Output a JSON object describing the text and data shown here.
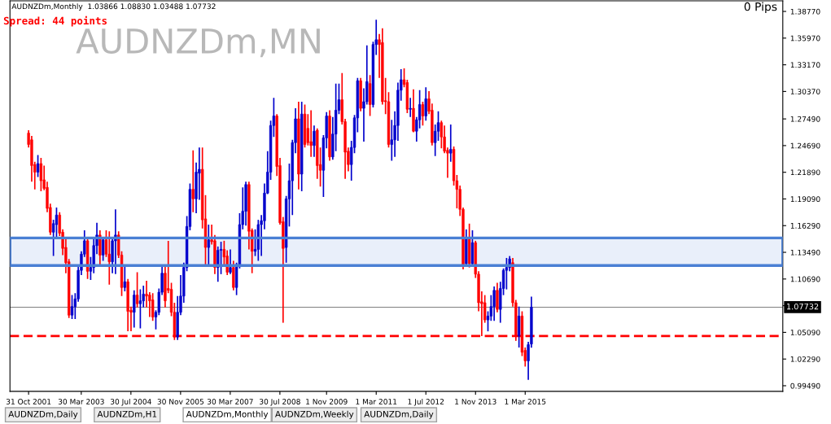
{
  "chart_data": {
    "type": "candlestick",
    "title": "AUDNZDm,MN",
    "annotations": [
      "AUDNZDm,Monthly  1.03866 1.08830 1.03488 1.07732",
      "Spread: 44 points",
      "0 Pips",
      "AUDNZDm,Daily",
      "AUDNZDm,H1",
      "AUDNZDm,Monthly",
      "AUDNZDm,Weekly",
      "AUDNZDm,Daily"
    ],
    "x": [
      "2001-11",
      "2001-12",
      "2002-01",
      "2002-02",
      "2002-03",
      "2002-04",
      "2002-05",
      "2002-06",
      "2002-07",
      "2002-08",
      "2002-09",
      "2002-10",
      "2002-11",
      "2002-12",
      "2003-01",
      "2003-02",
      "2003-03",
      "2003-04",
      "2003-05",
      "2003-06",
      "2003-07",
      "2003-08",
      "2003-09",
      "2003-10",
      "2003-11",
      "2003-12",
      "2004-01",
      "2004-02",
      "2004-03",
      "2004-04",
      "2004-05",
      "2004-06",
      "2004-07",
      "2004-08",
      "2004-09",
      "2004-10",
      "2004-11",
      "2004-12",
      "2005-01",
      "2005-02",
      "2005-03",
      "2005-04",
      "2005-05",
      "2005-06",
      "2005-07",
      "2005-08",
      "2005-09",
      "2005-10",
      "2005-11",
      "2005-12",
      "2006-01",
      "2006-02",
      "2006-03",
      "2006-04",
      "2006-05",
      "2006-06",
      "2006-07",
      "2006-08",
      "2006-09",
      "2006-10",
      "2006-11",
      "2006-12",
      "2007-01",
      "2007-02",
      "2007-03",
      "2007-04",
      "2007-05",
      "2007-06",
      "2007-07",
      "2007-08",
      "2007-09",
      "2007-10",
      "2007-11",
      "2007-12",
      "2008-01",
      "2008-02",
      "2008-03",
      "2008-04",
      "2008-05",
      "2008-06",
      "2008-07",
      "2008-08",
      "2008-09",
      "2008-10",
      "2008-11",
      "2008-12",
      "2009-01",
      "2009-02",
      "2009-03",
      "2009-04",
      "2009-05",
      "2009-06",
      "2009-07",
      "2009-08",
      "2009-09",
      "2009-10",
      "2009-11",
      "2009-12",
      "2010-01",
      "2010-02",
      "2010-03",
      "2010-04",
      "2010-05",
      "2010-06",
      "2010-07",
      "2010-08",
      "2010-09",
      "2010-10",
      "2010-11",
      "2010-12",
      "2011-01",
      "2011-02",
      "2011-03",
      "2011-04",
      "2011-05",
      "2011-06",
      "2011-07",
      "2011-08",
      "2011-09",
      "2011-10",
      "2011-11",
      "2011-12",
      "2012-01",
      "2012-02",
      "2012-03",
      "2012-04",
      "2012-05",
      "2012-06",
      "2012-07",
      "2012-08",
      "2012-09",
      "2012-10",
      "2012-11",
      "2012-12",
      "2013-01",
      "2013-02",
      "2013-03",
      "2013-04",
      "2013-05",
      "2013-06",
      "2013-07",
      "2013-08",
      "2013-09",
      "2013-10",
      "2013-11",
      "2013-12",
      "2014-01",
      "2014-02",
      "2014-03",
      "2014-04",
      "2014-05",
      "2014-06",
      "2014-07",
      "2014-08",
      "2014-09",
      "2014-10",
      "2014-11",
      "2014-12",
      "2015-01",
      "2015-02",
      "2015-03",
      "2015-04",
      "2015-05"
    ],
    "ohlc": [
      [
        1.26,
        1.263,
        1.245,
        1.248
      ],
      [
        1.253,
        1.257,
        1.209,
        1.226
      ],
      [
        1.227,
        1.23,
        1.201,
        1.219
      ],
      [
        1.219,
        1.237,
        1.214,
        1.228
      ],
      [
        1.228,
        1.234,
        1.199,
        1.21
      ],
      [
        1.211,
        1.226,
        1.2,
        1.202
      ],
      [
        1.203,
        1.209,
        1.177,
        1.181
      ],
      [
        1.182,
        1.186,
        1.153,
        1.156
      ],
      [
        1.156,
        1.169,
        1.131,
        1.165
      ],
      [
        1.164,
        1.182,
        1.15,
        1.174
      ],
      [
        1.174,
        1.177,
        1.152,
        1.155
      ],
      [
        1.156,
        1.159,
        1.132,
        1.139
      ],
      [
        1.14,
        1.151,
        1.113,
        1.124
      ],
      [
        1.125,
        1.128,
        1.066,
        1.069
      ],
      [
        1.069,
        1.09,
        1.065,
        1.078
      ],
      [
        1.078,
        1.092,
        1.065,
        1.086
      ],
      [
        1.086,
        1.122,
        1.083,
        1.116
      ],
      [
        1.116,
        1.136,
        1.111,
        1.133
      ],
      [
        1.133,
        1.158,
        1.13,
        1.147
      ],
      [
        1.147,
        1.15,
        1.107,
        1.115
      ],
      [
        1.115,
        1.13,
        1.106,
        1.119
      ],
      [
        1.119,
        1.15,
        1.113,
        1.142
      ],
      [
        1.142,
        1.166,
        1.133,
        1.153
      ],
      [
        1.153,
        1.158,
        1.12,
        1.132
      ],
      [
        1.132,
        1.15,
        1.126,
        1.148
      ],
      [
        1.148,
        1.158,
        1.13,
        1.133
      ],
      [
        1.133,
        1.157,
        1.101,
        1.125
      ],
      [
        1.125,
        1.15,
        1.113,
        1.147
      ],
      [
        1.147,
        1.18,
        1.112,
        1.153
      ],
      [
        1.153,
        1.157,
        1.129,
        1.132
      ],
      [
        1.132,
        1.136,
        1.089,
        1.098
      ],
      [
        1.098,
        1.121,
        1.094,
        1.104
      ],
      [
        1.104,
        1.107,
        1.052,
        1.073
      ],
      [
        1.074,
        1.078,
        1.052,
        1.072
      ],
      [
        1.072,
        1.095,
        1.056,
        1.09
      ],
      [
        1.09,
        1.114,
        1.077,
        1.081
      ],
      [
        1.081,
        1.096,
        1.055,
        1.084
      ],
      [
        1.084,
        1.1,
        1.077,
        1.091
      ],
      [
        1.091,
        1.105,
        1.077,
        1.089
      ],
      [
        1.09,
        1.093,
        1.067,
        1.084
      ],
      [
        1.085,
        1.092,
        1.063,
        1.067
      ],
      [
        1.067,
        1.074,
        1.054,
        1.072
      ],
      [
        1.072,
        1.097,
        1.069,
        1.093
      ],
      [
        1.093,
        1.12,
        1.09,
        1.113
      ],
      [
        1.113,
        1.12,
        1.077,
        1.084
      ],
      [
        1.097,
        1.147,
        1.092,
        1.095
      ],
      [
        1.096,
        1.103,
        1.068,
        1.072
      ],
      [
        1.072,
        1.082,
        1.043,
        1.046
      ],
      [
        1.046,
        1.089,
        1.043,
        1.072
      ],
      [
        1.072,
        1.111,
        1.069,
        1.089
      ],
      [
        1.089,
        1.124,
        1.082,
        1.119
      ],
      [
        1.119,
        1.173,
        1.115,
        1.162
      ],
      [
        1.162,
        1.207,
        1.158,
        1.201
      ],
      [
        1.201,
        1.242,
        1.177,
        1.191
      ],
      [
        1.191,
        1.229,
        1.176,
        1.219
      ],
      [
        1.218,
        1.245,
        1.19,
        1.222
      ],
      [
        1.222,
        1.245,
        1.16,
        1.169
      ],
      [
        1.17,
        1.195,
        1.12,
        1.14
      ],
      [
        1.14,
        1.164,
        1.12,
        1.148
      ],
      [
        1.148,
        1.164,
        1.143,
        1.146
      ],
      [
        1.147,
        1.153,
        1.112,
        1.119
      ],
      [
        1.119,
        1.141,
        1.104,
        1.137
      ],
      [
        1.137,
        1.146,
        1.112,
        1.138
      ],
      [
        1.138,
        1.147,
        1.122,
        1.13
      ],
      [
        1.131,
        1.137,
        1.111,
        1.114
      ],
      [
        1.114,
        1.138,
        1.112,
        1.119
      ],
      [
        1.119,
        1.126,
        1.095,
        1.098
      ],
      [
        1.098,
        1.124,
        1.09,
        1.122
      ],
      [
        1.122,
        1.176,
        1.118,
        1.164
      ],
      [
        1.164,
        1.203,
        1.159,
        1.178
      ],
      [
        1.178,
        1.209,
        1.163,
        1.206
      ],
      [
        1.206,
        1.209,
        1.138,
        1.157
      ],
      [
        1.158,
        1.16,
        1.113,
        1.136
      ],
      [
        1.136,
        1.159,
        1.131,
        1.138
      ],
      [
        1.138,
        1.169,
        1.126,
        1.164
      ],
      [
        1.164,
        1.174,
        1.131,
        1.168
      ],
      [
        1.168,
        1.207,
        1.159,
        1.197
      ],
      [
        1.197,
        1.241,
        1.196,
        1.219
      ],
      [
        1.219,
        1.273,
        1.211,
        1.268
      ],
      [
        1.268,
        1.297,
        1.256,
        1.278
      ],
      [
        1.278,
        1.28,
        1.215,
        1.225
      ],
      [
        1.226,
        1.234,
        1.164,
        1.166
      ],
      [
        1.167,
        1.172,
        1.061,
        1.139
      ],
      [
        1.14,
        1.194,
        1.124,
        1.191
      ],
      [
        1.191,
        1.228,
        1.162,
        1.21
      ],
      [
        1.21,
        1.253,
        1.174,
        1.25
      ],
      [
        1.25,
        1.286,
        1.239,
        1.275
      ],
      [
        1.275,
        1.293,
        1.201,
        1.217
      ],
      [
        1.217,
        1.293,
        1.199,
        1.28
      ],
      [
        1.28,
        1.29,
        1.245,
        1.248
      ],
      [
        1.265,
        1.28,
        1.247,
        1.25
      ],
      [
        1.251,
        1.284,
        1.235,
        1.247
      ],
      [
        1.247,
        1.268,
        1.235,
        1.262
      ],
      [
        1.263,
        1.265,
        1.212,
        1.226
      ],
      [
        1.227,
        1.245,
        1.204,
        1.221
      ],
      [
        1.221,
        1.258,
        1.193,
        1.255
      ],
      [
        1.255,
        1.282,
        1.244,
        1.278
      ],
      [
        1.278,
        1.284,
        1.231,
        1.235
      ],
      [
        1.235,
        1.277,
        1.232,
        1.259
      ],
      [
        1.259,
        1.312,
        1.241,
        1.284
      ],
      [
        1.284,
        1.312,
        1.28,
        1.295
      ],
      [
        1.295,
        1.323,
        1.269,
        1.272
      ],
      [
        1.272,
        1.275,
        1.212,
        1.24
      ],
      [
        1.241,
        1.245,
        1.22,
        1.227
      ],
      [
        1.227,
        1.252,
        1.21,
        1.245
      ],
      [
        1.245,
        1.279,
        1.239,
        1.276
      ],
      [
        1.276,
        1.318,
        1.261,
        1.315
      ],
      [
        1.315,
        1.318,
        1.283,
        1.286
      ],
      [
        1.286,
        1.307,
        1.251,
        1.293
      ],
      [
        1.293,
        1.352,
        1.29,
        1.314
      ],
      [
        1.312,
        1.321,
        1.278,
        1.29
      ],
      [
        1.29,
        1.356,
        1.287,
        1.353
      ],
      [
        1.353,
        1.379,
        1.342,
        1.358
      ],
      [
        1.358,
        1.364,
        1.318,
        1.353
      ],
      [
        1.355,
        1.37,
        1.29,
        1.293
      ],
      [
        1.294,
        1.318,
        1.28,
        1.293
      ],
      [
        1.293,
        1.303,
        1.245,
        1.248
      ],
      [
        1.248,
        1.274,
        1.231,
        1.253
      ],
      [
        1.253,
        1.283,
        1.235,
        1.268
      ],
      [
        1.268,
        1.313,
        1.252,
        1.305
      ],
      [
        1.305,
        1.327,
        1.294,
        1.316
      ],
      [
        1.316,
        1.328,
        1.308,
        1.311
      ],
      [
        1.313,
        1.316,
        1.281,
        1.285
      ],
      [
        1.285,
        1.297,
        1.277,
        1.286
      ],
      [
        1.286,
        1.306,
        1.261,
        1.262
      ],
      [
        1.262,
        1.277,
        1.251,
        1.274
      ],
      [
        1.274,
        1.305,
        1.265,
        1.29
      ],
      [
        1.29,
        1.293,
        1.268,
        1.278
      ],
      [
        1.278,
        1.308,
        1.273,
        1.296
      ],
      [
        1.296,
        1.304,
        1.28,
        1.283
      ],
      [
        1.284,
        1.291,
        1.247,
        1.25
      ],
      [
        1.25,
        1.269,
        1.236,
        1.262
      ],
      [
        1.262,
        1.283,
        1.252,
        1.271
      ],
      [
        1.271,
        1.273,
        1.244,
        1.256
      ],
      [
        1.256,
        1.268,
        1.239,
        1.241
      ],
      [
        1.242,
        1.245,
        1.213,
        1.239
      ],
      [
        1.239,
        1.269,
        1.23,
        1.243
      ],
      [
        1.243,
        1.246,
        1.205,
        1.21
      ],
      [
        1.21,
        1.216,
        1.181,
        1.201
      ],
      [
        1.201,
        1.205,
        1.173,
        1.18
      ],
      [
        1.18,
        1.182,
        1.117,
        1.12
      ],
      [
        1.123,
        1.159,
        1.12,
        1.15
      ],
      [
        1.149,
        1.165,
        1.119,
        1.123
      ],
      [
        1.123,
        1.158,
        1.12,
        1.145
      ],
      [
        1.145,
        1.147,
        1.108,
        1.112
      ],
      [
        1.112,
        1.115,
        1.073,
        1.082
      ],
      [
        1.083,
        1.094,
        1.047,
        1.081
      ],
      [
        1.082,
        1.09,
        1.061,
        1.064
      ],
      [
        1.064,
        1.073,
        1.052,
        1.068
      ],
      [
        1.068,
        1.09,
        1.063,
        1.078
      ],
      [
        1.078,
        1.099,
        1.063,
        1.095
      ],
      [
        1.095,
        1.103,
        1.072,
        1.075
      ],
      [
        1.075,
        1.104,
        1.061,
        1.097
      ],
      [
        1.097,
        1.118,
        1.09,
        1.116
      ],
      [
        1.116,
        1.129,
        1.096,
        1.119
      ],
      [
        1.119,
        1.131,
        1.115,
        1.128
      ],
      [
        1.124,
        1.129,
        1.078,
        1.082
      ],
      [
        1.082,
        1.085,
        1.042,
        1.047
      ],
      [
        1.047,
        1.078,
        1.035,
        1.068
      ],
      [
        1.068,
        1.073,
        1.026,
        1.03
      ],
      [
        1.032,
        1.035,
        1.015,
        1.021
      ],
      [
        1.021,
        1.041,
        1.001,
        1.038
      ],
      [
        1.03866,
        1.0883,
        1.03488,
        1.07732
      ]
    ],
    "colors": [
      "#ff0000",
      "#ff0000",
      "#ff0000",
      "#0000cc",
      "#ff0000",
      "#ff0000",
      "#ff0000",
      "#ff0000",
      "#0000cc",
      "#0000cc",
      "#ff0000",
      "#ff0000",
      "#ff0000",
      "#ff0000",
      "#0000cc",
      "#0000cc",
      "#0000cc",
      "#0000cc",
      "#0000cc",
      "#ff0000",
      "#0000cc",
      "#0000cc",
      "#0000cc",
      "#ff0000",
      "#0000cc",
      "#ff0000",
      "#ff0000",
      "#0000cc",
      "#0000cc",
      "#ff0000",
      "#ff0000",
      "#0000cc",
      "#ff0000",
      "#ff0000",
      "#0000cc",
      "#ff0000",
      "#0000cc",
      "#0000cc",
      "#ff0000",
      "#ff0000",
      "#ff0000",
      "#0000cc",
      "#0000cc",
      "#0000cc",
      "#ff0000",
      "#ff0000",
      "#ff0000",
      "#ff0000",
      "#0000cc",
      "#0000cc",
      "#0000cc",
      "#0000cc",
      "#0000cc",
      "#ff0000",
      "#0000cc",
      "#0000cc",
      "#ff0000",
      "#ff0000",
      "#0000cc",
      "#ff0000",
      "#ff0000",
      "#0000cc",
      "#0000cc",
      "#ff0000",
      "#ff0000",
      "#0000cc",
      "#ff0000",
      "#0000cc",
      "#0000cc",
      "#0000cc",
      "#0000cc",
      "#ff0000",
      "#ff0000",
      "#0000cc",
      "#0000cc",
      "#0000cc",
      "#0000cc",
      "#0000cc",
      "#0000cc",
      "#0000cc",
      "#ff0000",
      "#ff0000",
      "#ff0000",
      "#0000cc",
      "#0000cc",
      "#0000cc",
      "#0000cc",
      "#ff0000",
      "#0000cc",
      "#ff0000",
      "#ff0000",
      "#ff0000",
      "#0000cc",
      "#ff0000",
      "#ff0000",
      "#0000cc",
      "#0000cc",
      "#ff0000",
      "#0000cc",
      "#0000cc",
      "#0000cc",
      "#ff0000",
      "#ff0000",
      "#ff0000",
      "#0000cc",
      "#0000cc",
      "#0000cc",
      "#ff0000",
      "#0000cc",
      "#0000cc",
      "#ff0000",
      "#0000cc",
      "#0000cc",
      "#ff0000",
      "#ff0000",
      "#ff0000",
      "#ff0000",
      "#0000cc",
      "#0000cc",
      "#0000cc",
      "#0000cc",
      "#ff0000",
      "#ff0000",
      "#0000cc",
      "#ff0000",
      "#0000cc",
      "#0000cc",
      "#ff0000",
      "#0000cc",
      "#ff0000",
      "#ff0000",
      "#0000cc",
      "#0000cc",
      "#ff0000",
      "#ff0000",
      "#ff0000",
      "#0000cc",
      "#ff0000",
      "#ff0000",
      "#ff0000",
      "#ff0000",
      "#0000cc",
      "#ff0000",
      "#0000cc",
      "#ff0000",
      "#ff0000",
      "#ff0000",
      "#ff0000",
      "#0000cc",
      "#0000cc",
      "#0000cc",
      "#ff0000",
      "#0000cc",
      "#0000cc",
      "#0000cc",
      "#0000cc",
      "#ff0000",
      "#ff0000",
      "#0000cc",
      "#ff0000",
      "#ff0000",
      "#0000cc",
      "#0000cc"
    ],
    "xlim": [
      "2001-05",
      "2022-02"
    ],
    "xticks": [
      {
        "value": "2001-10-31",
        "label": "31 Oct 2001"
      },
      {
        "value": "2003-03-30",
        "label": "30 Mar 2003"
      },
      {
        "value": "2004-07-30",
        "label": "30 Jul 2004"
      },
      {
        "value": "2005-11-30",
        "label": "30 Nov 2005"
      },
      {
        "value": "2007-03-30",
        "label": "30 Mar 2007"
      },
      {
        "value": "2008-07-30",
        "label": "30 Jul 2008"
      },
      {
        "value": "2009-11-01",
        "label": "1 Nov 2009"
      },
      {
        "value": "2011-03-01",
        "label": "1 Mar 2011"
      },
      {
        "value": "2012-07-01",
        "label": "1 Jul 2012"
      },
      {
        "value": "2013-11-01",
        "label": "1 Nov 2013"
      },
      {
        "value": "2015-03-01",
        "label": "1 Mar 2015"
      }
    ],
    "ylim": [
      0.989,
      1.3988
    ],
    "yticks": [
      {
        "value": 1.3877,
        "label": "1.38770"
      },
      {
        "value": 1.3597,
        "label": "1.35970"
      },
      {
        "value": 1.3317,
        "label": "1.33170"
      },
      {
        "value": 1.3037,
        "label": "1.30370"
      },
      {
        "value": 1.2749,
        "label": "1.27490"
      },
      {
        "value": 1.2469,
        "label": "1.24690"
      },
      {
        "value": 1.2189,
        "label": "1.21890"
      },
      {
        "value": 1.1909,
        "label": "1.19090"
      },
      {
        "value": 1.1629,
        "label": "1.16290"
      },
      {
        "value": 1.1349,
        "label": "1.13490"
      },
      {
        "value": 1.1069,
        "label": "1.10690"
      },
      {
        "value": 1.0789,
        "label": null
      },
      {
        "value": 1.0509,
        "label": "1.05090"
      },
      {
        "value": 1.0229,
        "label": "1.02290"
      },
      {
        "value": 0.9949,
        "label": "0.99490"
      }
    ],
    "ref_lines": [
      {
        "axis": "y",
        "value": 1.07732,
        "label": "1.07732",
        "color": "#808080",
        "line_style": "solid"
      },
      {
        "axis": "y",
        "value": 1.047,
        "color": "#ff0000",
        "line_style": "dashed"
      }
    ],
    "bands": [
      {
        "axis": "y",
        "from": 1.121,
        "to": 1.15,
        "color": "#4a7fd4"
      }
    ],
    "grid": false,
    "legend": false
  }
}
